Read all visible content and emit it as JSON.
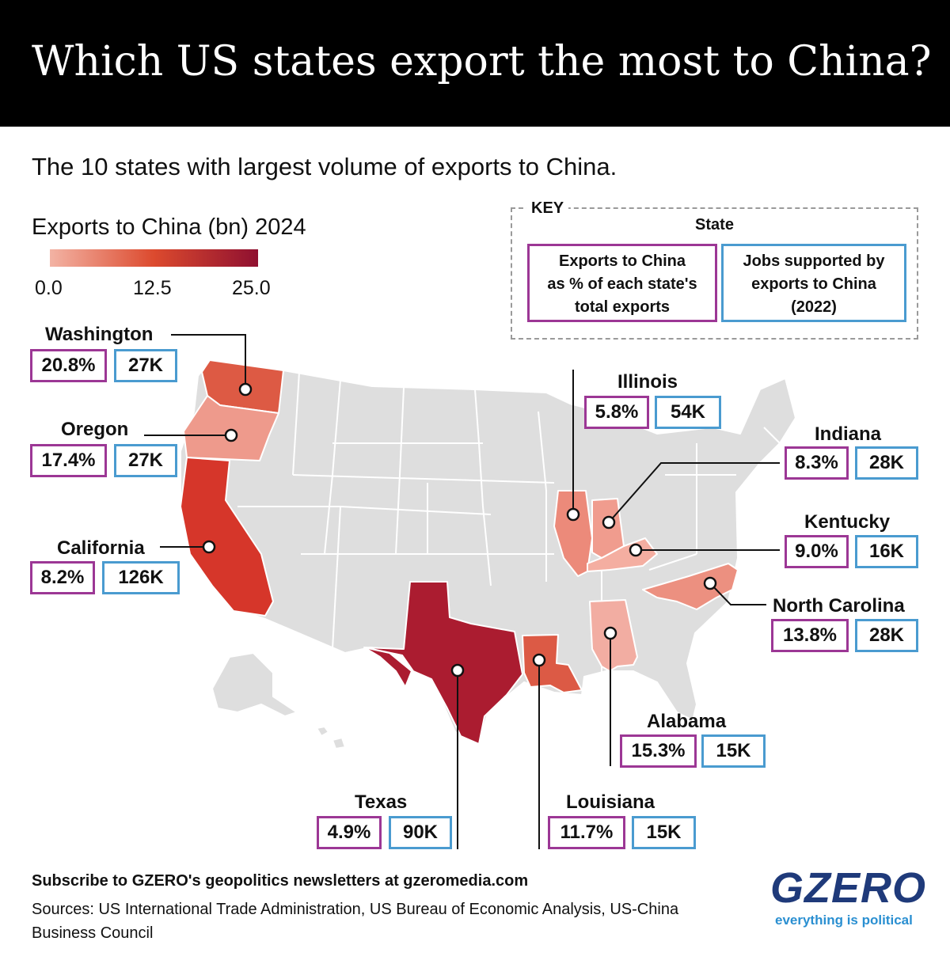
{
  "title": "Which US states export the most to China?",
  "subtitle": "The 10 states with largest volume of exports to China.",
  "legend": {
    "title": "Exports to China (bn) 2024",
    "ticks": [
      "0.0",
      "12.5",
      "25.0"
    ],
    "colors": [
      "#f3b3a4",
      "#dc4a2e",
      "#8f1030"
    ]
  },
  "key": {
    "label": "KEY",
    "state": "State",
    "pct_line1": "Exports to China",
    "pct_line2": "as % of each state's",
    "pct_line3": "total exports",
    "jobs_line1": "Jobs supported by",
    "jobs_line2": "exports to China",
    "jobs_line3": "(2022)"
  },
  "states": {
    "washington": {
      "name": "Washington",
      "pct": "20.8%",
      "jobs": "27K"
    },
    "oregon": {
      "name": "Oregon",
      "pct": "17.4%",
      "jobs": "27K"
    },
    "california": {
      "name": "California",
      "pct": "8.2%",
      "jobs": "126K"
    },
    "illinois": {
      "name": "Illinois",
      "pct": "5.8%",
      "jobs": "54K"
    },
    "indiana": {
      "name": "Indiana",
      "pct": "8.3%",
      "jobs": "28K"
    },
    "kentucky": {
      "name": "Kentucky",
      "pct": "9.0%",
      "jobs": "16K"
    },
    "north_carolina": {
      "name": "North Carolina",
      "pct": "13.8%",
      "jobs": "28K"
    },
    "alabama": {
      "name": "Alabama",
      "pct": "15.3%",
      "jobs": "15K"
    },
    "texas": {
      "name": "Texas",
      "pct": "4.9%",
      "jobs": "90K"
    },
    "louisiana": {
      "name": "Louisiana",
      "pct": "11.7%",
      "jobs": "15K"
    }
  },
  "colors": {
    "base_state": "#dedede",
    "washington": "#dd5a44",
    "oregon": "#ee9a8c",
    "california": "#d6362a",
    "illinois": "#ec8a7a",
    "indiana": "#f09c8e",
    "kentucky": "#f4aea1",
    "north_carolina": "#ec9080",
    "alabama": "#f2ada2",
    "texas": "#ab1c30",
    "louisiana": "#dc5a45",
    "pct_border": "#9c3795",
    "jobs_border": "#4a9bd0"
  },
  "footer": {
    "subscribe": "Subscribe to GZERO's geopolitics newsletters at gzeromedia.com",
    "sources": "Sources: US International Trade Administration, US Bureau of Economic Analysis, US-China Business Council"
  },
  "logo": {
    "name": "GZERO",
    "tagline": "everything is political"
  }
}
